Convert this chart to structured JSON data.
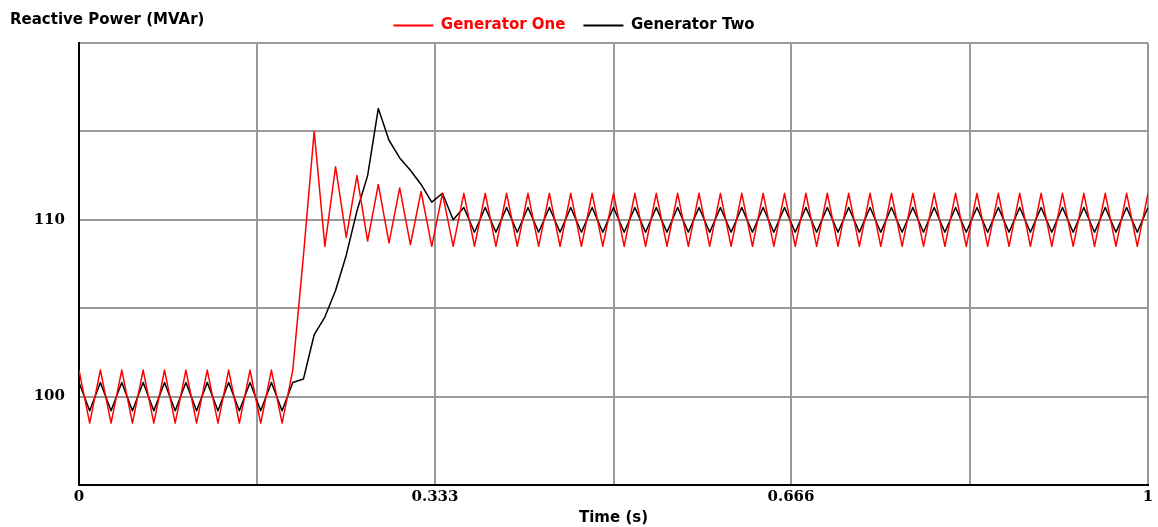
{
  "chart_data": {
    "type": "line",
    "xlabel": "Time (s)",
    "ylabel": "Reactive Power (MVAr)",
    "legend": "top",
    "grid": true,
    "xlim": [
      0,
      1
    ],
    "xticks": [
      0,
      {
        "value": 0.1667,
        "label": null
      },
      0.333,
      {
        "value": 0.5,
        "label": null
      },
      0.666,
      {
        "value": 0.8333,
        "label": null
      },
      1
    ],
    "ylim": [
      95,
      120
    ],
    "yticks": [
      {
        "value": 95,
        "label": null
      },
      100,
      {
        "value": 105,
        "label": null
      },
      110,
      {
        "value": 115,
        "label": null
      },
      {
        "value": 120,
        "label": null
      }
    ],
    "x": [
      0,
      0.01,
      0.02,
      0.03,
      0.04,
      0.05,
      0.06,
      0.07,
      0.08,
      0.09,
      0.1,
      0.11,
      0.12,
      0.13,
      0.14,
      0.15,
      0.16,
      0.17,
      0.18,
      0.19,
      0.2,
      0.21,
      0.22,
      0.23,
      0.24,
      0.25,
      0.26,
      0.27,
      0.28,
      0.29,
      0.3,
      0.31,
      0.32,
      0.33,
      0.34,
      0.35,
      0.36,
      0.37,
      0.38,
      0.39,
      0.4,
      0.41,
      0.42,
      0.43,
      0.44,
      0.45,
      0.46,
      0.47,
      0.48,
      0.49,
      0.5,
      0.51,
      0.52,
      0.53,
      0.54,
      0.55,
      0.56,
      0.57,
      0.58,
      0.59,
      0.6,
      0.61,
      0.62,
      0.63,
      0.64,
      0.65,
      0.66,
      0.67,
      0.68,
      0.69,
      0.7,
      0.71,
      0.72,
      0.73,
      0.74,
      0.75,
      0.76,
      0.77,
      0.78,
      0.79,
      0.8,
      0.81,
      0.82,
      0.83,
      0.84,
      0.85,
      0.86,
      0.87,
      0.88,
      0.89,
      0.9,
      0.91,
      0.92,
      0.93,
      0.94,
      0.95,
      0.96,
      0.97,
      0.98,
      0.99,
      1
    ],
    "series": [
      {
        "name": "Generator One",
        "color": "#ff0000",
        "values": [
          101.5,
          98.5,
          101.5,
          98.5,
          101.5,
          98.5,
          101.5,
          98.5,
          101.5,
          98.5,
          101.5,
          98.5,
          101.5,
          98.5,
          101.5,
          98.5,
          101.5,
          98.5,
          101.5,
          98.5,
          101.5,
          108,
          115,
          108.5,
          113,
          109,
          112.5,
          108.8,
          112,
          108.7,
          111.8,
          108.6,
          111.6,
          108.5,
          111.5,
          108.5,
          111.5,
          108.5,
          111.5,
          108.5,
          111.5,
          108.5,
          111.5,
          108.5,
          111.5,
          108.5,
          111.5,
          108.5,
          111.5,
          108.5,
          111.5,
          108.5,
          111.5,
          108.5,
          111.5,
          108.5,
          111.5,
          108.5,
          111.5,
          108.5,
          111.5,
          108.5,
          111.5,
          108.5,
          111.5,
          108.5,
          111.5,
          108.5,
          111.5,
          108.5,
          111.5,
          108.5,
          111.5,
          108.5,
          111.5,
          108.5,
          111.5,
          108.5,
          111.5,
          108.5,
          111.5,
          108.5,
          111.5,
          108.5,
          111.5,
          108.5,
          111.5,
          108.5,
          111.5,
          108.5,
          111.5,
          108.5,
          111.5,
          108.5,
          111.5,
          108.5,
          111.5,
          108.5,
          111.5,
          108.5,
          111.5
        ]
      },
      {
        "name": "Generator Two",
        "color": "#000000",
        "values": [
          100.8,
          99.2,
          100.8,
          99.2,
          100.8,
          99.2,
          100.8,
          99.2,
          100.8,
          99.2,
          100.8,
          99.2,
          100.8,
          99.2,
          100.8,
          99.2,
          100.8,
          99.2,
          100.8,
          99.2,
          100.8,
          101,
          103.5,
          104.5,
          106,
          108,
          110.5,
          112.5,
          116.3,
          114.5,
          113.5,
          112.8,
          112,
          111,
          111.5,
          110,
          110.7,
          109.3,
          110.7,
          109.3,
          110.7,
          109.3,
          110.7,
          109.3,
          110.7,
          109.3,
          110.7,
          109.3,
          110.7,
          109.3,
          110.7,
          109.3,
          110.7,
          109.3,
          110.7,
          109.3,
          110.7,
          109.3,
          110.7,
          109.3,
          110.7,
          109.3,
          110.7,
          109.3,
          110.7,
          109.3,
          110.7,
          109.3,
          110.7,
          109.3,
          110.7,
          109.3,
          110.7,
          109.3,
          110.7,
          109.3,
          110.7,
          109.3,
          110.7,
          109.3,
          110.7,
          109.3,
          110.7,
          109.3,
          110.7,
          109.3,
          110.7,
          109.3,
          110.7,
          109.3,
          110.7,
          109.3,
          110.7,
          109.3,
          110.7,
          109.3,
          110.7,
          109.3,
          110.7,
          109.3,
          110.7
        ]
      }
    ]
  }
}
